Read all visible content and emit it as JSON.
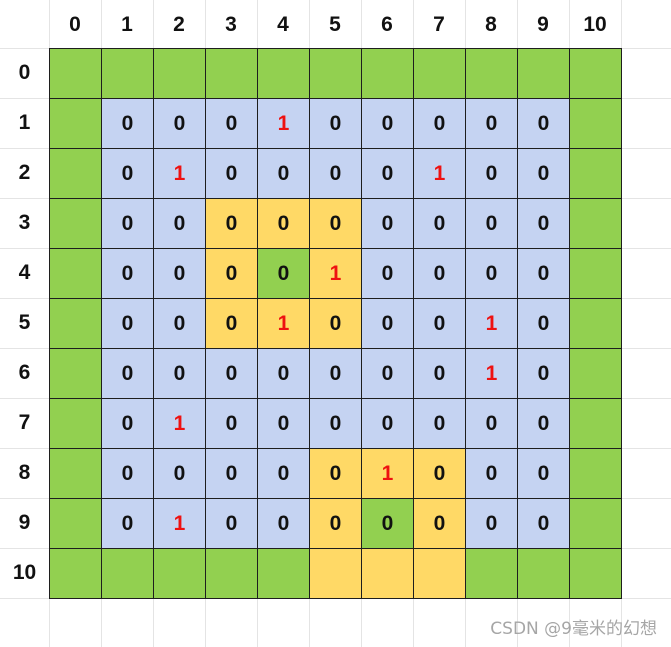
{
  "colors": {
    "green_border": "#92d050",
    "blue_interior": "#c5d3f2",
    "yellow_region": "#ffd966",
    "value_zero": "#111111",
    "value_one": "#ee1111"
  },
  "column_headers": [
    "0",
    "1",
    "2",
    "3",
    "4",
    "5",
    "6",
    "7",
    "8",
    "9",
    "10"
  ],
  "row_headers": [
    "0",
    "1",
    "2",
    "3",
    "4",
    "5",
    "6",
    "7",
    "8",
    "9",
    "10"
  ],
  "grid": {
    "fill_legend": {
      "G": "green",
      "B": "blue",
      "Y": "yellow"
    },
    "fills": [
      [
        "G",
        "G",
        "G",
        "G",
        "G",
        "G",
        "G",
        "G",
        "G",
        "G",
        "G"
      ],
      [
        "G",
        "B",
        "B",
        "B",
        "B",
        "B",
        "B",
        "B",
        "B",
        "B",
        "G"
      ],
      [
        "G",
        "B",
        "B",
        "B",
        "B",
        "B",
        "B",
        "B",
        "B",
        "B",
        "G"
      ],
      [
        "G",
        "B",
        "B",
        "Y",
        "Y",
        "Y",
        "B",
        "B",
        "B",
        "B",
        "G"
      ],
      [
        "G",
        "B",
        "B",
        "Y",
        "G",
        "Y",
        "B",
        "B",
        "B",
        "B",
        "G"
      ],
      [
        "G",
        "B",
        "B",
        "Y",
        "Y",
        "Y",
        "B",
        "B",
        "B",
        "B",
        "G"
      ],
      [
        "G",
        "B",
        "B",
        "B",
        "B",
        "B",
        "B",
        "B",
        "B",
        "B",
        "G"
      ],
      [
        "G",
        "B",
        "B",
        "B",
        "B",
        "B",
        "B",
        "B",
        "B",
        "B",
        "G"
      ],
      [
        "G",
        "B",
        "B",
        "B",
        "B",
        "Y",
        "Y",
        "Y",
        "B",
        "B",
        "G"
      ],
      [
        "G",
        "B",
        "B",
        "B",
        "B",
        "Y",
        "G",
        "Y",
        "B",
        "B",
        "G"
      ],
      [
        "G",
        "G",
        "G",
        "G",
        "G",
        "Y",
        "Y",
        "Y",
        "G",
        "G",
        "G"
      ]
    ],
    "values": [
      [
        "",
        "",
        "",
        "",
        "",
        "",
        "",
        "",
        "",
        "",
        ""
      ],
      [
        "",
        "0",
        "0",
        "0",
        "1",
        "0",
        "0",
        "0",
        "0",
        "0",
        ""
      ],
      [
        "",
        "0",
        "1",
        "0",
        "0",
        "0",
        "0",
        "1",
        "0",
        "0",
        ""
      ],
      [
        "",
        "0",
        "0",
        "0",
        "0",
        "0",
        "0",
        "0",
        "0",
        "0",
        ""
      ],
      [
        "",
        "0",
        "0",
        "0",
        "0",
        "1",
        "0",
        "0",
        "0",
        "0",
        ""
      ],
      [
        "",
        "0",
        "0",
        "0",
        "1",
        "0",
        "0",
        "0",
        "1",
        "0",
        ""
      ],
      [
        "",
        "0",
        "0",
        "0",
        "0",
        "0",
        "0",
        "0",
        "1",
        "0",
        ""
      ],
      [
        "",
        "0",
        "1",
        "0",
        "0",
        "0",
        "0",
        "0",
        "0",
        "0",
        ""
      ],
      [
        "",
        "0",
        "0",
        "0",
        "0",
        "0",
        "1",
        "0",
        "0",
        "0",
        ""
      ],
      [
        "",
        "0",
        "1",
        "0",
        "0",
        "0",
        "0",
        "0",
        "0",
        "0",
        ""
      ],
      [
        "",
        "",
        "",
        "",
        "",
        "",
        "",
        "",
        "",
        "",
        ""
      ]
    ]
  },
  "watermark": "CSDN @9毫米的幻想"
}
